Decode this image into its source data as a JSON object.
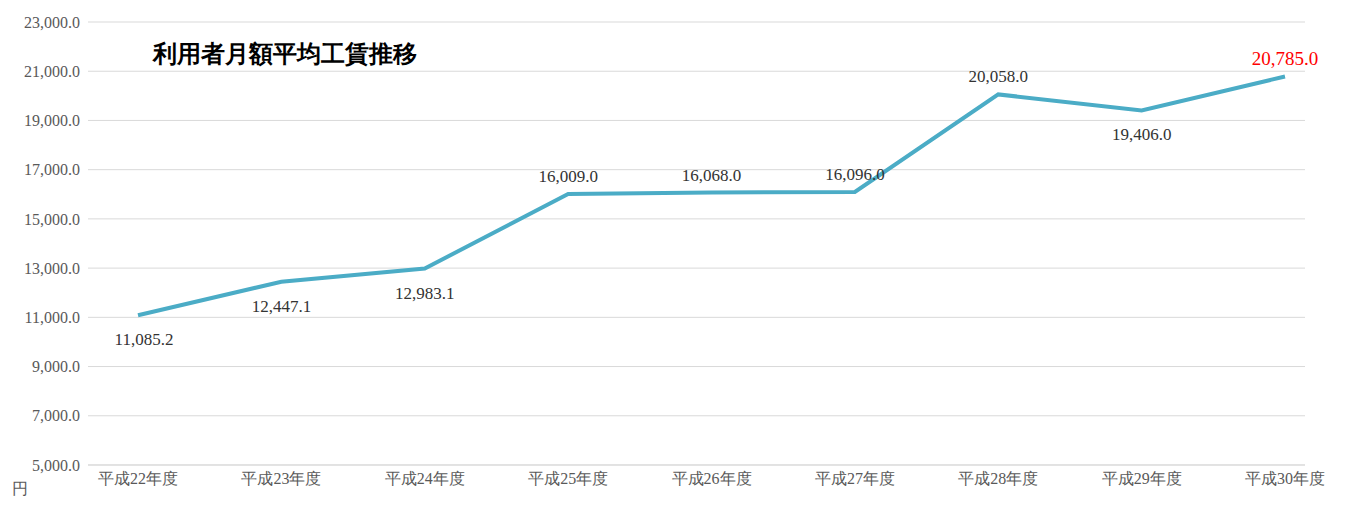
{
  "chart_data": {
    "type": "line",
    "title": "利用者月額平均工賃推移",
    "y_label": "円",
    "categories": [
      "平成22年度",
      "平成23年度",
      "平成24年度",
      "平成25年度",
      "平成26年度",
      "平成27年度",
      "平成28年度",
      "平成29年度",
      "平成30年度"
    ],
    "values": [
      11085.2,
      12447.1,
      12983.1,
      16009.0,
      16068.0,
      16096.0,
      20058.0,
      19406.0,
      20785.0
    ],
    "value_labels": [
      "11,085.2",
      "12,447.1",
      "12,983.1",
      "16,009.0",
      "16,068.0",
      "16,096.0",
      "20,058.0",
      "19,406.0",
      "20,785.0"
    ],
    "data_labels": true,
    "color": "#4bacc6",
    "ylim": [
      5000,
      23000
    ],
    "yticks": [
      {
        "value": 5000,
        "label": "5,000.0"
      },
      {
        "value": 7000,
        "label": "7,000.0"
      },
      {
        "value": 9000,
        "label": "9,000.0"
      },
      {
        "value": 11000,
        "label": "11,000.0"
      },
      {
        "value": 13000,
        "label": "13,000.0"
      },
      {
        "value": 15000,
        "label": "15,000.0"
      },
      {
        "value": 17000,
        "label": "17,000.0"
      },
      {
        "value": 19000,
        "label": "19,000.0"
      },
      {
        "value": 21000,
        "label": "21,000.0"
      },
      {
        "value": 23000,
        "label": "23,000.0"
      }
    ],
    "grid": true
  }
}
